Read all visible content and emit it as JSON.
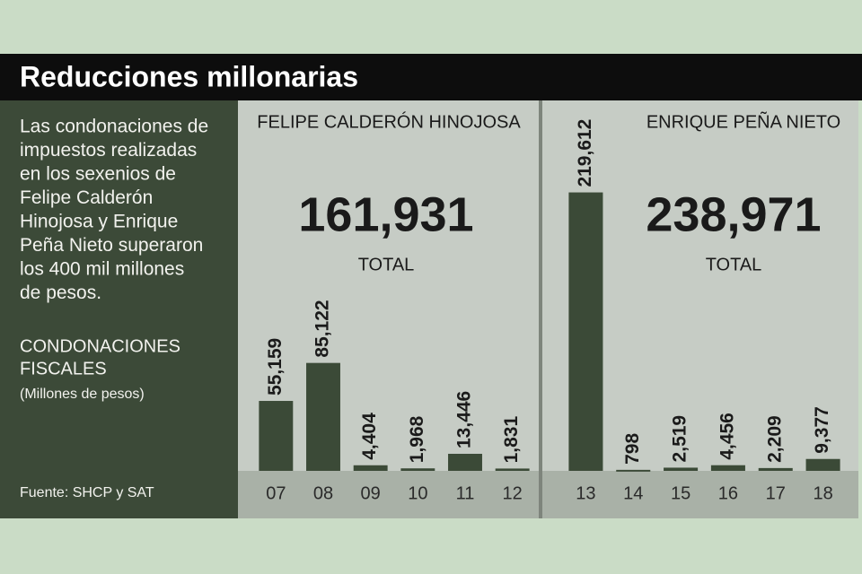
{
  "title": "Reducciones millonarias",
  "description": [
    "Las condonaciones de",
    "impuestos realizadas",
    "en los sexenios de",
    "Felipe Calderón",
    "Hinojosa y Enrique",
    "Peña Nieto superaron",
    "los 400 mil millones",
    "de pesos."
  ],
  "subtitle": [
    "CONDONACIONES",
    "FISCALES"
  ],
  "units": "(Millones de pesos)",
  "source": "Fuente: SHCP y SAT",
  "chart_data": [
    {
      "type": "bar",
      "title": "FELIPE CALDERÓN HINOJOSA",
      "total": "161,931",
      "total_caption": "TOTAL",
      "categories": [
        "07",
        "08",
        "09",
        "10",
        "11",
        "12"
      ],
      "values": [
        55159,
        85122,
        4404,
        1968,
        13446,
        1831
      ],
      "value_labels": [
        "55,159",
        "85,122",
        "4,404",
        "1,968",
        "13,446",
        "1,831"
      ],
      "color": "#3b4a37",
      "ylim": [
        0,
        220000
      ]
    },
    {
      "type": "bar",
      "title": "ENRIQUE PEÑA NIETO",
      "total": "238,971",
      "total_caption": "TOTAL",
      "categories": [
        "13",
        "14",
        "15",
        "16",
        "17",
        "18"
      ],
      "values": [
        219612,
        798,
        2519,
        4456,
        2209,
        9377
      ],
      "value_labels": [
        "219,612",
        "798",
        "2,519",
        "4,456",
        "2,209",
        "9,377"
      ],
      "color": "#3b4a37",
      "ylim": [
        0,
        220000
      ]
    }
  ]
}
